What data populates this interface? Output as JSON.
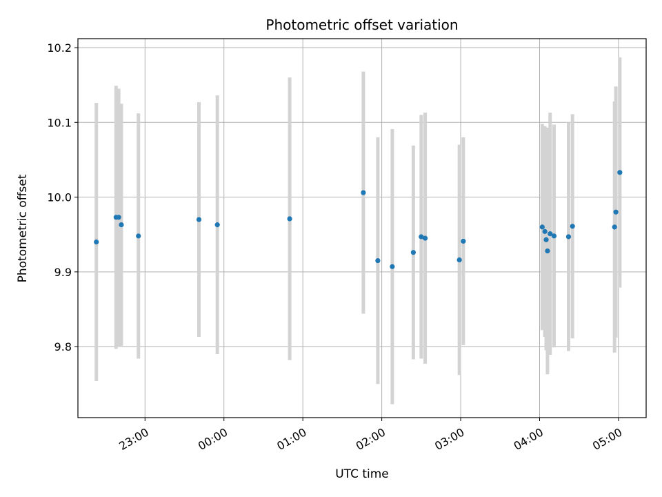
{
  "chart_data": {
    "type": "scatter",
    "title": "Photometric offset variation",
    "xlabel": "UTC time",
    "ylabel": "Photometric offset",
    "x_ticks": [
      "23:00",
      "00:00",
      "01:00",
      "02:00",
      "03:00",
      "04:00",
      "05:00"
    ],
    "x_tick_hours": [
      23,
      24,
      25,
      26,
      27,
      28,
      29
    ],
    "xlim_hours": [
      22.15,
      29.35
    ],
    "y_ticks": [
      "9.8",
      "9.9",
      "10.0",
      "10.1",
      "10.2"
    ],
    "y_tick_values": [
      9.8,
      9.9,
      10.0,
      10.1,
      10.2
    ],
    "ylim": [
      9.705,
      10.212
    ],
    "grid": true,
    "colors": {
      "point": "#1f77b4",
      "errorbar": "#d3d3d3",
      "grid": "#b0b0b0"
    },
    "points": [
      {
        "time": "22:23",
        "y": 9.94,
        "err": 0.186
      },
      {
        "time": "22:38",
        "y": 9.973,
        "err": 0.176
      },
      {
        "time": "22:40",
        "y": 9.973,
        "err": 0.172
      },
      {
        "time": "22:42",
        "y": 9.963,
        "err": 0.162
      },
      {
        "time": "22:55",
        "y": 9.948,
        "err": 0.164
      },
      {
        "time": "23:41",
        "y": 9.97,
        "err": 0.157
      },
      {
        "time": "23:55",
        "y": 9.963,
        "err": 0.173
      },
      {
        "time": "00:50",
        "y": 9.971,
        "err": 0.189
      },
      {
        "time": "01:46",
        "y": 10.006,
        "err": 0.162
      },
      {
        "time": "01:57",
        "y": 9.915,
        "err": 0.165
      },
      {
        "time": "02:08",
        "y": 9.907,
        "err": 0.184
      },
      {
        "time": "02:24",
        "y": 9.926,
        "err": 0.143
      },
      {
        "time": "02:30",
        "y": 9.947,
        "err": 0.163
      },
      {
        "time": "02:33",
        "y": 9.945,
        "err": 0.168
      },
      {
        "time": "02:59",
        "y": 9.916,
        "err": 0.154
      },
      {
        "time": "03:02",
        "y": 9.941,
        "err": 0.139
      },
      {
        "time": "04:02",
        "y": 9.96,
        "err": 0.138
      },
      {
        "time": "04:04",
        "y": 9.954,
        "err": 0.141
      },
      {
        "time": "04:05",
        "y": 9.943,
        "err": 0.148
      },
      {
        "time": "04:06",
        "y": 9.928,
        "err": 0.165
      },
      {
        "time": "04:08",
        "y": 9.951,
        "err": 0.162
      },
      {
        "time": "04:11",
        "y": 9.948,
        "err": 0.149
      },
      {
        "time": "04:22",
        "y": 9.947,
        "err": 0.153
      },
      {
        "time": "04:25",
        "y": 9.961,
        "err": 0.15
      },
      {
        "time": "04:57",
        "y": 9.96,
        "err": 0.168
      },
      {
        "time": "04:58",
        "y": 9.98,
        "err": 0.168
      },
      {
        "time": "05:01",
        "y": 10.033,
        "err": 0.154
      }
    ]
  }
}
